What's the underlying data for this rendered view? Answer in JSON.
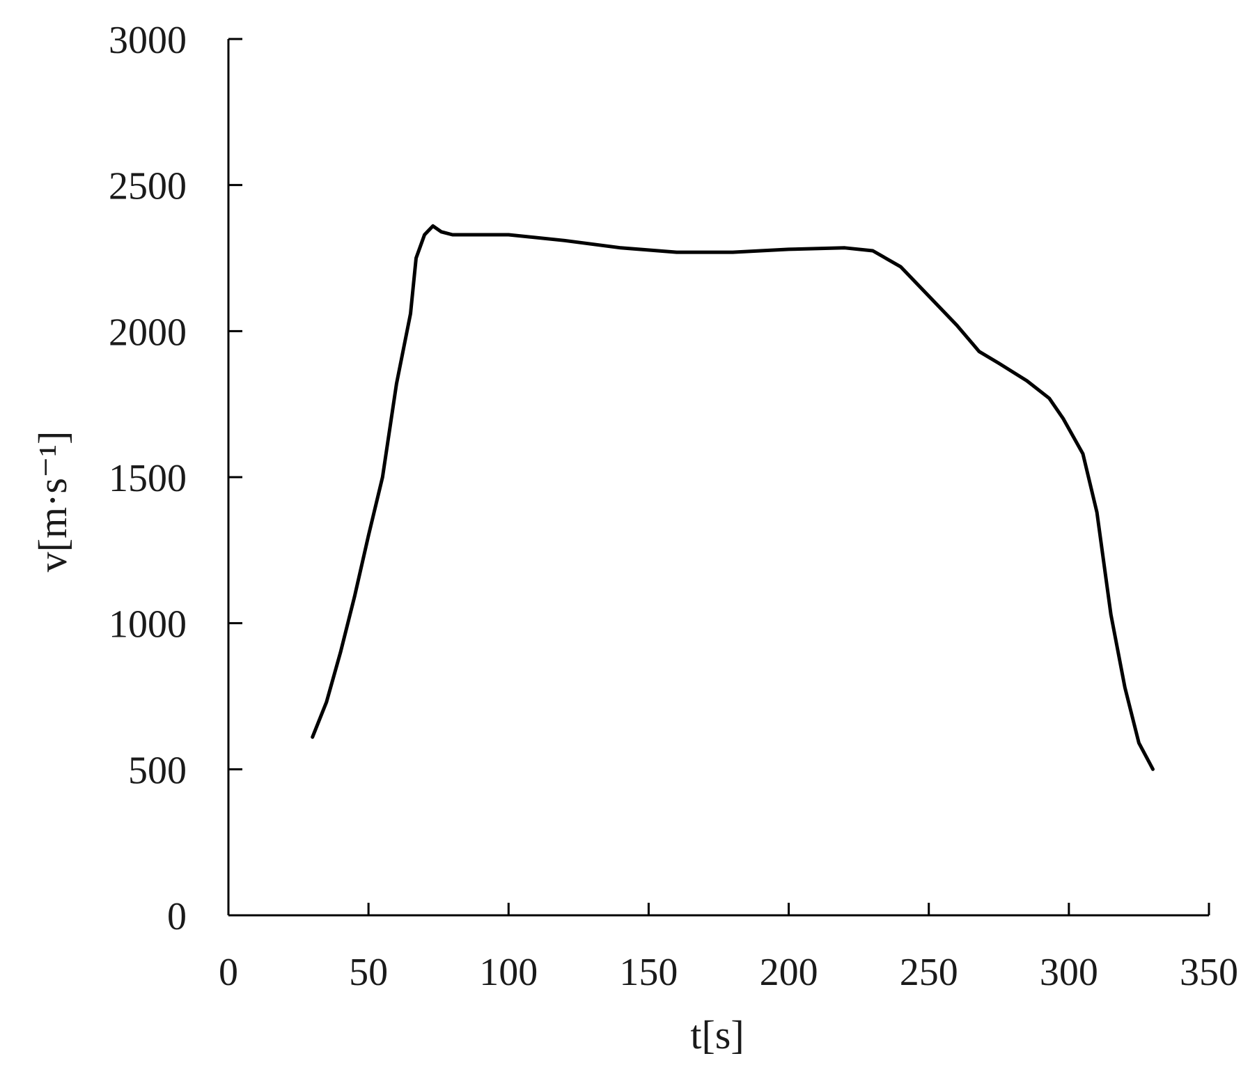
{
  "chart_data": {
    "type": "line",
    "title": "",
    "xlabel": "t[s]",
    "ylabel": "v[m·s⁻¹]",
    "xlim": [
      0,
      350
    ],
    "ylim": [
      0,
      3000
    ],
    "xticks": [
      "0",
      "50",
      "100",
      "150",
      "200",
      "250",
      "300",
      "350"
    ],
    "yticks": [
      "0",
      "500",
      "1000",
      "1500",
      "2000",
      "2500",
      "3000"
    ],
    "grid": false,
    "line_color": "#000000",
    "series": [
      {
        "x": [
          30,
          35,
          40,
          45,
          50,
          55,
          60,
          65,
          67,
          70,
          73,
          76,
          80,
          100,
          120,
          140,
          160,
          180,
          200,
          220,
          230,
          240,
          250,
          260,
          268,
          275,
          285,
          293,
          298,
          305,
          310,
          315,
          320,
          325,
          330
        ],
        "y": [
          610,
          730,
          900,
          1090,
          1300,
          1500,
          1820,
          2060,
          2250,
          2330,
          2360,
          2340,
          2330,
          2330,
          2310,
          2285,
          2270,
          2270,
          2280,
          2285,
          2275,
          2220,
          2120,
          2020,
          1930,
          1890,
          1830,
          1770,
          1700,
          1580,
          1380,
          1030,
          780,
          590,
          500
        ]
      }
    ]
  }
}
